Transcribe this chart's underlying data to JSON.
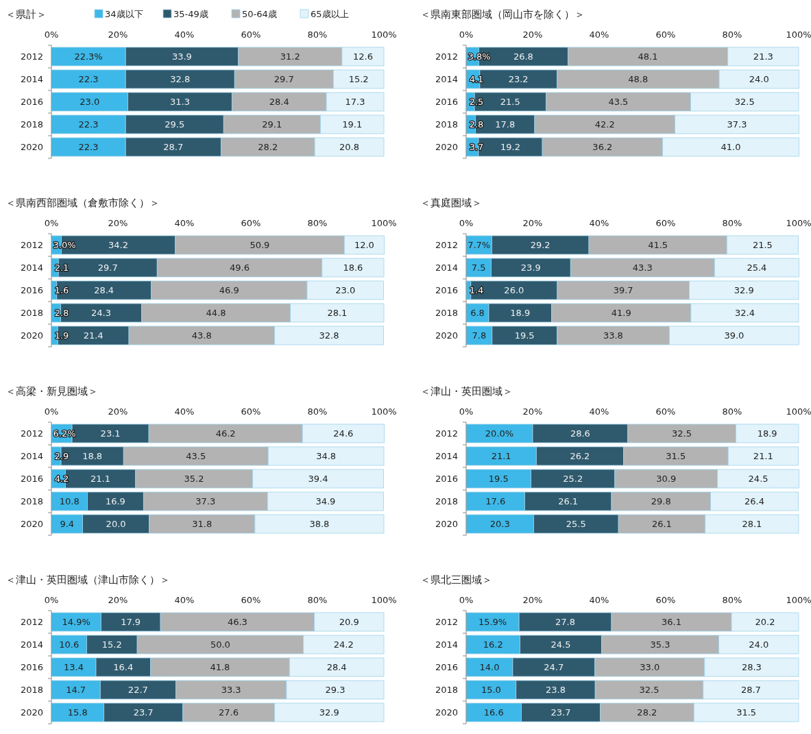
{
  "chart_data": [
    {
      "type": "bar",
      "orientation": "horizontal",
      "stacked": true,
      "title": "＜県計＞",
      "legend": "top",
      "categories": [
        "2012",
        "2014",
        "2016",
        "2018",
        "2020"
      ],
      "xlim": [
        0,
        100
      ],
      "xticks": [
        {
          "value": 0,
          "label": "0%"
        },
        {
          "value": 20,
          "label": "20%"
        },
        {
          "value": 40,
          "label": "40%"
        },
        {
          "value": 60,
          "label": "60%"
        },
        {
          "value": 80,
          "label": "80%"
        },
        {
          "value": 100,
          "label": "100%"
        }
      ],
      "series": [
        {
          "name": "34歳以下",
          "color": "#3db8e8",
          "values": [
            22.3,
            22.3,
            23.0,
            22.3,
            22.3
          ],
          "value_labels": [
            "22.3%",
            "22.3",
            "23.0",
            "22.3",
            "22.3"
          ]
        },
        {
          "name": "35-49歳",
          "color": "#2f5a6e",
          "values": [
            33.9,
            32.8,
            31.3,
            29.5,
            28.7
          ],
          "value_labels": [
            "33.9",
            "32.8",
            "31.3",
            "29.5",
            "28.7"
          ]
        },
        {
          "name": "50-64歳",
          "color": "#b3b3b3",
          "values": [
            31.2,
            29.7,
            28.4,
            29.1,
            28.2
          ],
          "value_labels": [
            "31.2",
            "29.7",
            "28.4",
            "29.1",
            "28.2"
          ]
        },
        {
          "name": "65歳以上",
          "color": "#e2f3fb",
          "values": [
            12.6,
            15.2,
            17.3,
            19.1,
            20.8
          ],
          "value_labels": [
            "12.6",
            "15.2",
            "17.3",
            "19.1",
            "20.8"
          ]
        }
      ]
    },
    {
      "type": "bar",
      "orientation": "horizontal",
      "stacked": true,
      "title": "＜県南東部圏域（岡山市を除く）＞",
      "categories": [
        "2012",
        "2014",
        "2016",
        "2018",
        "2020"
      ],
      "xlim": [
        0,
        100
      ],
      "xticks": [
        {
          "value": 0,
          "label": "0%"
        },
        {
          "value": 20,
          "label": "20%"
        },
        {
          "value": 40,
          "label": "40%"
        },
        {
          "value": 60,
          "label": "60%"
        },
        {
          "value": 80,
          "label": "80%"
        },
        {
          "value": 100,
          "label": "100%"
        }
      ],
      "series": [
        {
          "color": "#3db8e8",
          "values": [
            3.8,
            4.1,
            2.5,
            2.8,
            3.7
          ],
          "value_labels": [
            "3.8%",
            "4.1",
            "2.5",
            "2.8",
            "3.7"
          ]
        },
        {
          "color": "#2f5a6e",
          "values": [
            26.8,
            23.2,
            21.5,
            17.8,
            19.2
          ],
          "value_labels": [
            "26.8",
            "23.2",
            "21.5",
            "17.8",
            "19.2"
          ]
        },
        {
          "color": "#b3b3b3",
          "values": [
            48.1,
            48.8,
            43.5,
            42.2,
            36.2
          ],
          "value_labels": [
            "48.1",
            "48.8",
            "43.5",
            "42.2",
            "36.2"
          ]
        },
        {
          "color": "#e2f3fb",
          "values": [
            21.3,
            24.0,
            32.5,
            37.3,
            41.0
          ],
          "value_labels": [
            "21.3",
            "24.0",
            "32.5",
            "37.3",
            "41.0"
          ]
        }
      ]
    },
    {
      "type": "bar",
      "orientation": "horizontal",
      "stacked": true,
      "title": "＜県南西部圏域（倉敷市除く）＞",
      "categories": [
        "2012",
        "2014",
        "2016",
        "2018",
        "2020"
      ],
      "xlim": [
        0,
        100
      ],
      "xticks": [
        {
          "value": 0,
          "label": "0%"
        },
        {
          "value": 20,
          "label": "20%"
        },
        {
          "value": 40,
          "label": "40%"
        },
        {
          "value": 60,
          "label": "60%"
        },
        {
          "value": 80,
          "label": "80%"
        },
        {
          "value": 100,
          "label": "100%"
        }
      ],
      "series": [
        {
          "color": "#3db8e8",
          "values": [
            3.0,
            2.1,
            1.6,
            2.8,
            1.9
          ],
          "value_labels": [
            "3.0%",
            "2.1",
            "1.6",
            "2.8",
            "1.9"
          ]
        },
        {
          "color": "#2f5a6e",
          "values": [
            34.2,
            29.7,
            28.4,
            24.3,
            21.4
          ],
          "value_labels": [
            "34.2",
            "29.7",
            "28.4",
            "24.3",
            "21.4"
          ]
        },
        {
          "color": "#b3b3b3",
          "values": [
            50.9,
            49.6,
            46.9,
            44.8,
            43.8
          ],
          "value_labels": [
            "50.9",
            "49.6",
            "46.9",
            "44.8",
            "43.8"
          ]
        },
        {
          "color": "#e2f3fb",
          "values": [
            12.0,
            18.6,
            23.0,
            28.1,
            32.8
          ],
          "value_labels": [
            "12.0",
            "18.6",
            "23.0",
            "28.1",
            "32.8"
          ]
        }
      ]
    },
    {
      "type": "bar",
      "orientation": "horizontal",
      "stacked": true,
      "title": "＜真庭圏域＞",
      "categories": [
        "2012",
        "2014",
        "2016",
        "2018",
        "2020"
      ],
      "xlim": [
        0,
        100
      ],
      "xticks": [
        {
          "value": 0,
          "label": "0%"
        },
        {
          "value": 20,
          "label": "20%"
        },
        {
          "value": 40,
          "label": "40%"
        },
        {
          "value": 60,
          "label": "60%"
        },
        {
          "value": 80,
          "label": "80%"
        },
        {
          "value": 100,
          "label": "100%"
        }
      ],
      "series": [
        {
          "color": "#3db8e8",
          "values": [
            7.7,
            7.5,
            1.4,
            6.8,
            7.8
          ],
          "value_labels": [
            "7.7%",
            "7.5",
            "1.4",
            "6.8",
            "7.8"
          ]
        },
        {
          "color": "#2f5a6e",
          "values": [
            29.2,
            23.9,
            26.0,
            18.9,
            19.5
          ],
          "value_labels": [
            "29.2",
            "23.9",
            "26.0",
            "18.9",
            "19.5"
          ]
        },
        {
          "color": "#b3b3b3",
          "values": [
            41.5,
            43.3,
            39.7,
            41.9,
            33.8
          ],
          "value_labels": [
            "41.5",
            "43.3",
            "39.7",
            "41.9",
            "33.8"
          ]
        },
        {
          "color": "#e2f3fb",
          "values": [
            21.5,
            25.4,
            32.9,
            32.4,
            39.0
          ],
          "value_labels": [
            "21.5",
            "25.4",
            "32.9",
            "32.4",
            "39.0"
          ]
        }
      ]
    },
    {
      "type": "bar",
      "orientation": "horizontal",
      "stacked": true,
      "title": "＜高梁・新見圏域＞",
      "categories": [
        "2012",
        "2014",
        "2016",
        "2018",
        "2020"
      ],
      "xlim": [
        0,
        100
      ],
      "xticks": [
        {
          "value": 0,
          "label": "0%"
        },
        {
          "value": 20,
          "label": "20%"
        },
        {
          "value": 40,
          "label": "40%"
        },
        {
          "value": 60,
          "label": "60%"
        },
        {
          "value": 80,
          "label": "80%"
        },
        {
          "value": 100,
          "label": "100%"
        }
      ],
      "series": [
        {
          "color": "#3db8e8",
          "values": [
            6.2,
            2.9,
            4.2,
            10.8,
            9.4
          ],
          "value_labels": [
            "6.2%",
            "2.9",
            "4.2",
            "10.8",
            "9.4"
          ]
        },
        {
          "color": "#2f5a6e",
          "values": [
            23.1,
            18.8,
            21.1,
            16.9,
            20.0
          ],
          "value_labels": [
            "23.1",
            "18.8",
            "21.1",
            "16.9",
            "20.0"
          ]
        },
        {
          "color": "#b3b3b3",
          "values": [
            46.2,
            43.5,
            35.2,
            37.3,
            31.8
          ],
          "value_labels": [
            "46.2",
            "43.5",
            "35.2",
            "37.3",
            "31.8"
          ]
        },
        {
          "color": "#e2f3fb",
          "values": [
            24.6,
            34.8,
            39.4,
            34.9,
            38.8
          ],
          "value_labels": [
            "24.6",
            "34.8",
            "39.4",
            "34.9",
            "38.8"
          ]
        }
      ]
    },
    {
      "type": "bar",
      "orientation": "horizontal",
      "stacked": true,
      "title": "＜津山・英田圏域＞",
      "categories": [
        "2012",
        "2014",
        "2016",
        "2018",
        "2020"
      ],
      "xlim": [
        0,
        100
      ],
      "xticks": [
        {
          "value": 0,
          "label": "0%"
        },
        {
          "value": 20,
          "label": "20%"
        },
        {
          "value": 40,
          "label": "40%"
        },
        {
          "value": 60,
          "label": "60%"
        },
        {
          "value": 80,
          "label": "80%"
        },
        {
          "value": 100,
          "label": "100%"
        }
      ],
      "series": [
        {
          "color": "#3db8e8",
          "values": [
            20.0,
            21.1,
            19.5,
            17.6,
            20.3
          ],
          "value_labels": [
            "20.0%",
            "21.1",
            "19.5",
            "17.6",
            "20.3"
          ]
        },
        {
          "color": "#2f5a6e",
          "values": [
            28.6,
            26.2,
            25.2,
            26.1,
            25.5
          ],
          "value_labels": [
            "28.6",
            "26.2",
            "25.2",
            "26.1",
            "25.5"
          ]
        },
        {
          "color": "#b3b3b3",
          "values": [
            32.5,
            31.5,
            30.9,
            29.8,
            26.1
          ],
          "value_labels": [
            "32.5",
            "31.5",
            "30.9",
            "29.8",
            "26.1"
          ]
        },
        {
          "color": "#e2f3fb",
          "values": [
            18.9,
            21.1,
            24.5,
            26.4,
            28.1
          ],
          "value_labels": [
            "18.9",
            "21.1",
            "24.5",
            "26.4",
            "28.1"
          ]
        }
      ]
    },
    {
      "type": "bar",
      "orientation": "horizontal",
      "stacked": true,
      "title": "＜津山・英田圏域（津山市除く）＞",
      "categories": [
        "2012",
        "2014",
        "2016",
        "2018",
        "2020"
      ],
      "xlim": [
        0,
        100
      ],
      "xticks": [
        {
          "value": 0,
          "label": "0%"
        },
        {
          "value": 20,
          "label": "20%"
        },
        {
          "value": 40,
          "label": "40%"
        },
        {
          "value": 60,
          "label": "60%"
        },
        {
          "value": 80,
          "label": "80%"
        },
        {
          "value": 100,
          "label": "100%"
        }
      ],
      "series": [
        {
          "color": "#3db8e8",
          "values": [
            14.9,
            10.6,
            13.4,
            14.7,
            15.8
          ],
          "value_labels": [
            "14.9%",
            "10.6",
            "13.4",
            "14.7",
            "15.8"
          ]
        },
        {
          "color": "#2f5a6e",
          "values": [
            17.9,
            15.2,
            16.4,
            22.7,
            23.7
          ],
          "value_labels": [
            "17.9",
            "15.2",
            "16.4",
            "22.7",
            "23.7"
          ]
        },
        {
          "color": "#b3b3b3",
          "values": [
            46.3,
            50.0,
            41.8,
            33.3,
            27.6
          ],
          "value_labels": [
            "46.3",
            "50.0",
            "41.8",
            "33.3",
            "27.6"
          ]
        },
        {
          "color": "#e2f3fb",
          "values": [
            20.9,
            24.2,
            28.4,
            29.3,
            32.9
          ],
          "value_labels": [
            "20.9",
            "24.2",
            "28.4",
            "29.3",
            "32.9"
          ]
        }
      ]
    },
    {
      "type": "bar",
      "orientation": "horizontal",
      "stacked": true,
      "title": "＜県北三圏域＞",
      "categories": [
        "2012",
        "2014",
        "2016",
        "2018",
        "2020"
      ],
      "xlim": [
        0,
        100
      ],
      "xticks": [
        {
          "value": 0,
          "label": "0%"
        },
        {
          "value": 20,
          "label": "20%"
        },
        {
          "value": 40,
          "label": "40%"
        },
        {
          "value": 60,
          "label": "60%"
        },
        {
          "value": 80,
          "label": "80%"
        },
        {
          "value": 100,
          "label": "100%"
        }
      ],
      "series": [
        {
          "color": "#3db8e8",
          "values": [
            15.9,
            16.2,
            14.0,
            15.0,
            16.6
          ],
          "value_labels": [
            "15.9%",
            "16.2",
            "14.0",
            "15.0",
            "16.6"
          ]
        },
        {
          "color": "#2f5a6e",
          "values": [
            27.8,
            24.5,
            24.7,
            23.8,
            23.7
          ],
          "value_labels": [
            "27.8",
            "24.5",
            "24.7",
            "23.8",
            "23.7"
          ]
        },
        {
          "color": "#b3b3b3",
          "values": [
            36.1,
            35.3,
            33.0,
            32.5,
            28.2
          ],
          "value_labels": [
            "36.1",
            "35.3",
            "33.0",
            "32.5",
            "28.2"
          ]
        },
        {
          "color": "#e2f3fb",
          "values": [
            20.2,
            24.0,
            28.3,
            28.7,
            31.5
          ],
          "value_labels": [
            "20.2",
            "24.0",
            "28.3",
            "28.7",
            "31.5"
          ]
        }
      ]
    }
  ]
}
